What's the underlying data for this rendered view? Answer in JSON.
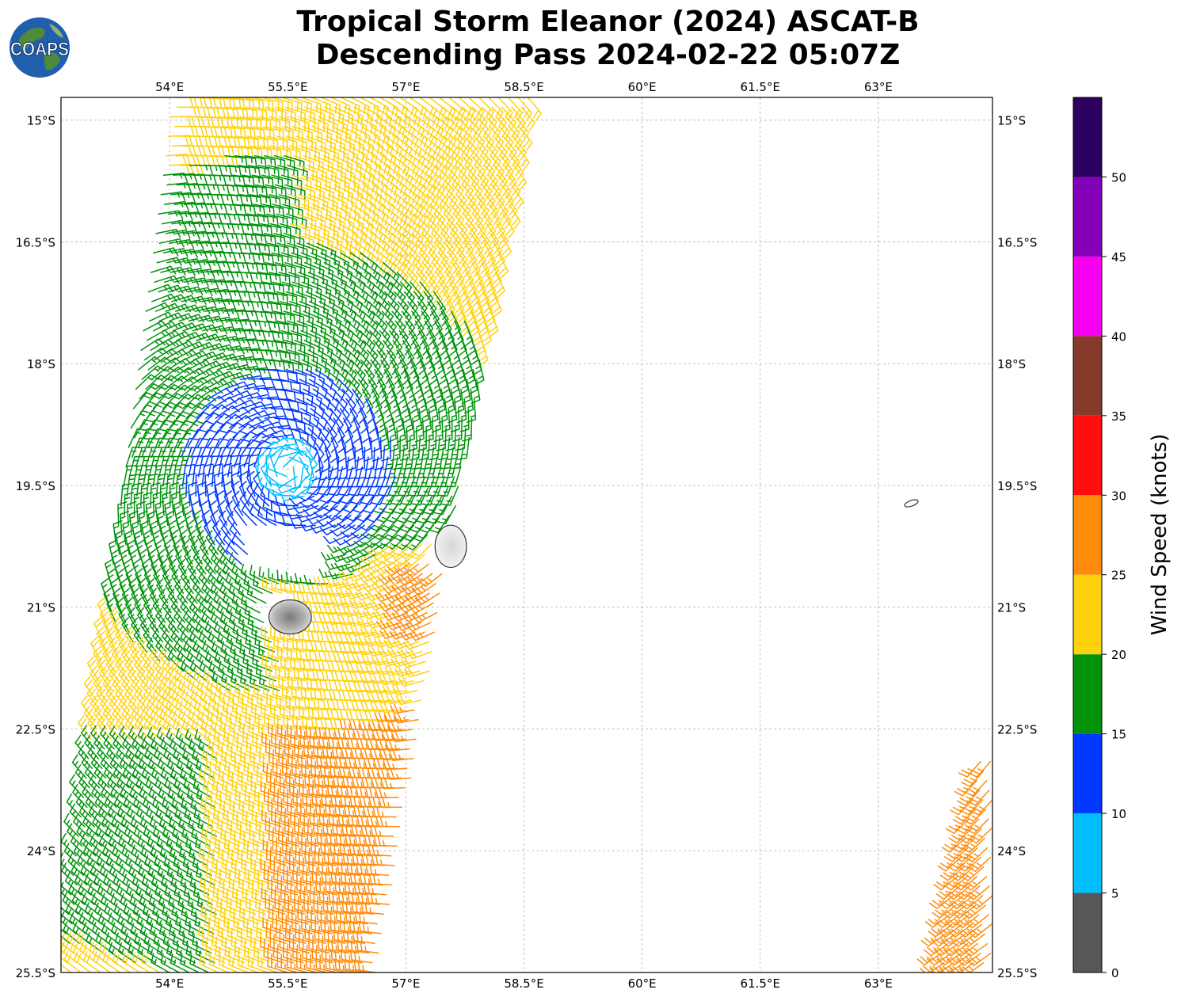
{
  "title": {
    "line1": "Tropical Storm Eleanor (2024) ASCAT-B",
    "line2": "Descending Pass 2024-02-22 05:07Z"
  },
  "logo": {
    "text": "COAPS",
    "icon": "globe-icon"
  },
  "map": {
    "lon_range": [
      52.62,
      64.45
    ],
    "lat_range": [
      -25.5,
      -14.72
    ],
    "lon_ticks": [
      {
        "value": 54.0,
        "label": "54°E"
      },
      {
        "value": 55.5,
        "label": "55.5°E"
      },
      {
        "value": 57.0,
        "label": "57°E"
      },
      {
        "value": 58.5,
        "label": "58.5°E"
      },
      {
        "value": 60.0,
        "label": "60°E"
      },
      {
        "value": 61.5,
        "label": "61.5°E"
      },
      {
        "value": 63.0,
        "label": "63°E"
      }
    ],
    "lat_ticks": [
      {
        "value": -15.0,
        "label": "15°S"
      },
      {
        "value": -16.5,
        "label": "16.5°S"
      },
      {
        "value": -18.0,
        "label": "18°S"
      },
      {
        "value": -19.5,
        "label": "19.5°S"
      },
      {
        "value": -21.0,
        "label": "21°S"
      },
      {
        "value": -22.5,
        "label": "22.5°S"
      },
      {
        "value": -24.0,
        "label": "24°S"
      },
      {
        "value": -25.5,
        "label": "25.5°S"
      }
    ],
    "grid": true,
    "islands": [
      {
        "name": "reunion",
        "center": [
          55.53,
          -21.12
        ],
        "radius": [
          0.27,
          0.21
        ]
      },
      {
        "name": "mauritius",
        "center": [
          57.57,
          -20.25
        ],
        "radius": [
          0.2,
          0.26
        ]
      },
      {
        "name": "rodrigues",
        "center": [
          63.42,
          -19.72
        ],
        "radius": [
          0.09,
          0.035
        ]
      }
    ],
    "storm_center": [
      55.5,
      -19.3
    ]
  },
  "colorbar": {
    "label": "Wind Speed (knots)",
    "ticks": [
      "0",
      "5",
      "10",
      "15",
      "20",
      "25",
      "30",
      "35",
      "40",
      "45",
      "50"
    ],
    "bins": [
      {
        "min": 0,
        "max": 5,
        "color": "#575757"
      },
      {
        "min": 5,
        "max": 10,
        "color": "#00bfff"
      },
      {
        "min": 10,
        "max": 15,
        "color": "#0038ff"
      },
      {
        "min": 15,
        "max": 20,
        "color": "#00930a"
      },
      {
        "min": 20,
        "max": 25,
        "color": "#ffd20e"
      },
      {
        "min": 25,
        "max": 30,
        "color": "#ff8c0b"
      },
      {
        "min": 30,
        "max": 35,
        "color": "#ff0e0e"
      },
      {
        "min": 35,
        "max": 40,
        "color": "#853a2a"
      },
      {
        "min": 40,
        "max": 45,
        "color": "#f500f1"
      },
      {
        "min": 45,
        "max": 50,
        "color": "#8500b9"
      },
      {
        "min": 50,
        "max": 55,
        "color": "#2b005e"
      }
    ]
  },
  "swaths": [
    {
      "name": "main-swath",
      "top_lat": -14.72,
      "top_west_lon": 54.05,
      "top_east_lon": 58.55,
      "bottom_lat": -25.5,
      "bottom_west_lon": 52.62,
      "bottom_east_lon": 56.65
    },
    {
      "name": "east-swath-edge",
      "top_lat": -22.9,
      "top_west_lon": 64.3,
      "top_east_lon": 64.45,
      "bottom_lat": -25.5,
      "bottom_west_lon": 63.75,
      "bottom_east_lon": 64.45
    }
  ]
}
